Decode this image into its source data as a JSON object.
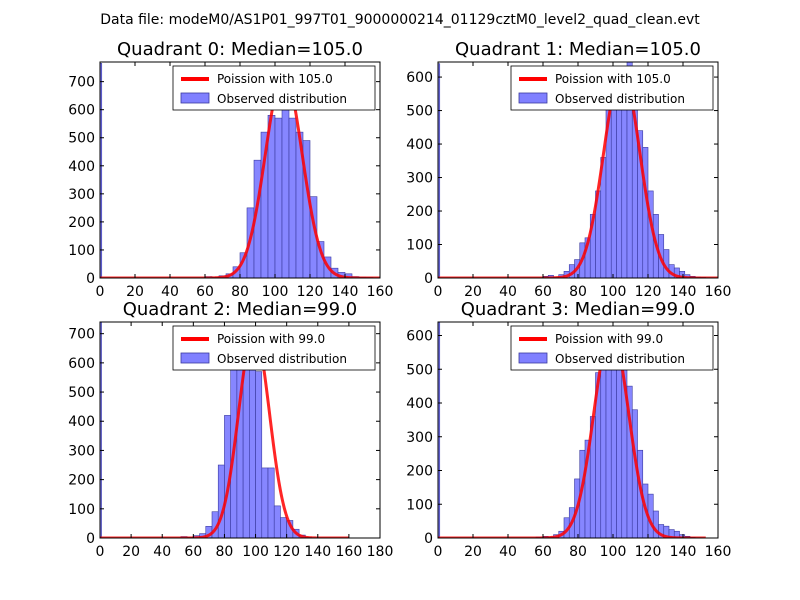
{
  "figure": {
    "suptitle": "Data file: modeM0/AS1P01_997T01_9000000214_01129cztM0_level2_quad_clean.evt"
  },
  "colors": {
    "hist_fill": "#8080ff",
    "hist_edge": "#3a3aa0",
    "fit_line": "#ff0000",
    "axes": "#000000",
    "background": "#ffffff"
  },
  "chart_data": [
    {
      "type": "bar",
      "title": "Quadrant 0: Median=105.0",
      "xlim": [
        0,
        160
      ],
      "ylim": [
        0,
        770
      ],
      "xticks": [
        0,
        20,
        40,
        60,
        80,
        100,
        120,
        140,
        160
      ],
      "yticks": [
        0,
        100,
        200,
        300,
        400,
        500,
        600,
        700
      ],
      "bin_width": 4,
      "left_spike": {
        "x": 0,
        "width": 1,
        "value": 765
      },
      "bins_x": [
        60,
        64,
        68,
        72,
        76,
        80,
        84,
        88,
        92,
        96,
        100,
        104,
        108,
        112,
        116,
        120,
        124,
        128,
        132,
        136,
        140,
        144,
        148,
        152
      ],
      "bins_y": [
        5,
        3,
        8,
        15,
        40,
        90,
        250,
        420,
        520,
        580,
        570,
        635,
        570,
        520,
        490,
        290,
        130,
        75,
        35,
        20,
        15,
        5,
        3,
        2
      ],
      "fit": {
        "label": "Poission with 105.0",
        "mu": 105,
        "peak": 730,
        "sigma": 10.5,
        "x_start": 0,
        "x_end": 160
      },
      "legend": {
        "fit_label": "Poission with 105.0",
        "hist_label": "Observed distribution",
        "position": "upper right"
      }
    },
    {
      "type": "bar",
      "title": "Quadrant 1: Median=105.0",
      "xlim": [
        0,
        160
      ],
      "ylim": [
        0,
        645
      ],
      "xticks": [
        0,
        20,
        40,
        60,
        80,
        100,
        120,
        140,
        160
      ],
      "yticks": [
        0,
        100,
        200,
        300,
        400,
        500,
        600
      ],
      "bin_width": 3,
      "left_spike": {
        "x": 0,
        "width": 1,
        "value": 640
      },
      "bins_x": [
        60,
        63,
        66,
        69,
        72,
        75,
        78,
        81,
        84,
        87,
        90,
        93,
        96,
        99,
        102,
        105,
        108,
        111,
        114,
        117,
        120,
        123,
        126,
        129,
        132,
        135,
        138,
        141,
        144,
        147,
        150
      ],
      "bins_y": [
        5,
        8,
        3,
        10,
        20,
        40,
        55,
        105,
        120,
        190,
        260,
        360,
        530,
        590,
        600,
        610,
        645,
        520,
        440,
        390,
        260,
        190,
        130,
        85,
        40,
        30,
        20,
        10,
        5,
        3,
        2
      ],
      "fit": {
        "label": "Poission with 105.0",
        "mu": 105,
        "peak": 620,
        "sigma": 10.3,
        "x_start": 0,
        "x_end": 160
      },
      "legend": {
        "fit_label": "Poission with 105.0",
        "hist_label": "Observed distribution",
        "position": "upper right"
      }
    },
    {
      "type": "bar",
      "title": "Quadrant 2: Median=99.0",
      "xlim": [
        0,
        180
      ],
      "ylim": [
        0,
        740
      ],
      "xticks": [
        0,
        20,
        40,
        60,
        80,
        100,
        120,
        140,
        160,
        180
      ],
      "yticks": [
        0,
        100,
        200,
        300,
        400,
        500,
        600,
        700
      ],
      "bin_width": 4,
      "left_spike": {
        "x": 0,
        "width": 1,
        "value": 740
      },
      "bins_x": [
        52,
        56,
        60,
        64,
        68,
        72,
        76,
        80,
        84,
        88,
        92,
        96,
        100,
        104,
        108,
        112,
        116,
        120,
        124,
        128,
        132
      ],
      "bins_y": [
        5,
        3,
        8,
        15,
        40,
        90,
        250,
        420,
        590,
        610,
        700,
        680,
        570,
        240,
        240,
        110,
        70,
        60,
        30,
        10,
        2
      ],
      "fit": {
        "label": "Poission with 99.0",
        "mu": 99,
        "peak": 710,
        "sigma": 9.9,
        "x_start": 0,
        "x_end": 160
      },
      "legend": {
        "fit_label": "Poission with 99.0",
        "hist_label": "Observed distribution",
        "position": "upper right"
      }
    },
    {
      "type": "bar",
      "title": "Quadrant 3: Median=99.0",
      "xlim": [
        0,
        160
      ],
      "ylim": [
        0,
        640
      ],
      "xticks": [
        0,
        20,
        40,
        60,
        80,
        100,
        120,
        140,
        160
      ],
      "yticks": [
        0,
        100,
        200,
        300,
        400,
        500,
        600
      ],
      "bin_width": 3,
      "left_spike": {
        "x": 0,
        "width": 1,
        "value": 640
      },
      "bins_x": [
        56,
        60,
        63,
        66,
        69,
        72,
        75,
        78,
        81,
        84,
        87,
        90,
        93,
        96,
        99,
        102,
        105,
        108,
        111,
        114,
        117,
        120,
        123,
        126,
        129,
        132,
        135,
        138,
        141,
        144
      ],
      "bins_y": [
        3,
        5,
        3,
        10,
        20,
        60,
        90,
        175,
        260,
        290,
        360,
        490,
        520,
        620,
        600,
        600,
        590,
        450,
        380,
        260,
        160,
        130,
        80,
        40,
        35,
        25,
        20,
        10,
        5,
        2
      ],
      "fit": {
        "label": "Poission with 99.0",
        "mu": 99,
        "peak": 615,
        "sigma": 9.9,
        "x_start": 0,
        "x_end": 153
      },
      "legend": {
        "fit_label": "Poission with 99.0",
        "hist_label": "Observed distribution",
        "position": "upper right"
      }
    }
  ]
}
